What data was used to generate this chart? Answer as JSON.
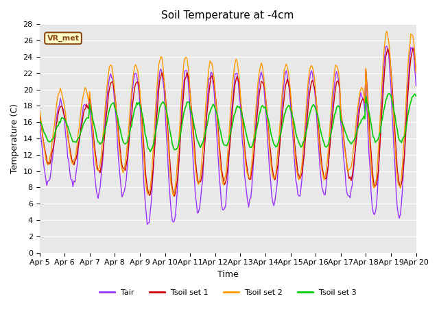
{
  "title": "Soil Temperature at -4cm",
  "xlabel": "Time",
  "ylabel": "Temperature (C)",
  "ylim": [
    0,
    28
  ],
  "xtick_labels": [
    "Apr 5",
    "Apr 6",
    "Apr 7",
    "Apr 8",
    "Apr 9",
    "Apr 10",
    "Apr 11",
    "Apr 12",
    "Apr 13",
    "Apr 14",
    "Apr 15",
    "Apr 16",
    "Apr 17",
    "Apr 18",
    "Apr 19",
    "Apr 20"
  ],
  "annotation_text": "VR_met",
  "annotation_bg": "#ffffcc",
  "annotation_border": "#8B4513",
  "line_colors": {
    "Tair": "#9b30ff",
    "Tsoil1": "#cc0000",
    "Tsoil2": "#ff9900",
    "Tsoil3": "#00cc00"
  },
  "legend_labels": [
    "Tair",
    "Tsoil set 1",
    "Tsoil set 2",
    "Tsoil set 3"
  ],
  "bg_color": "#e8e8e8",
  "title_fontsize": 11,
  "axis_fontsize": 9,
  "tick_fontsize": 8
}
